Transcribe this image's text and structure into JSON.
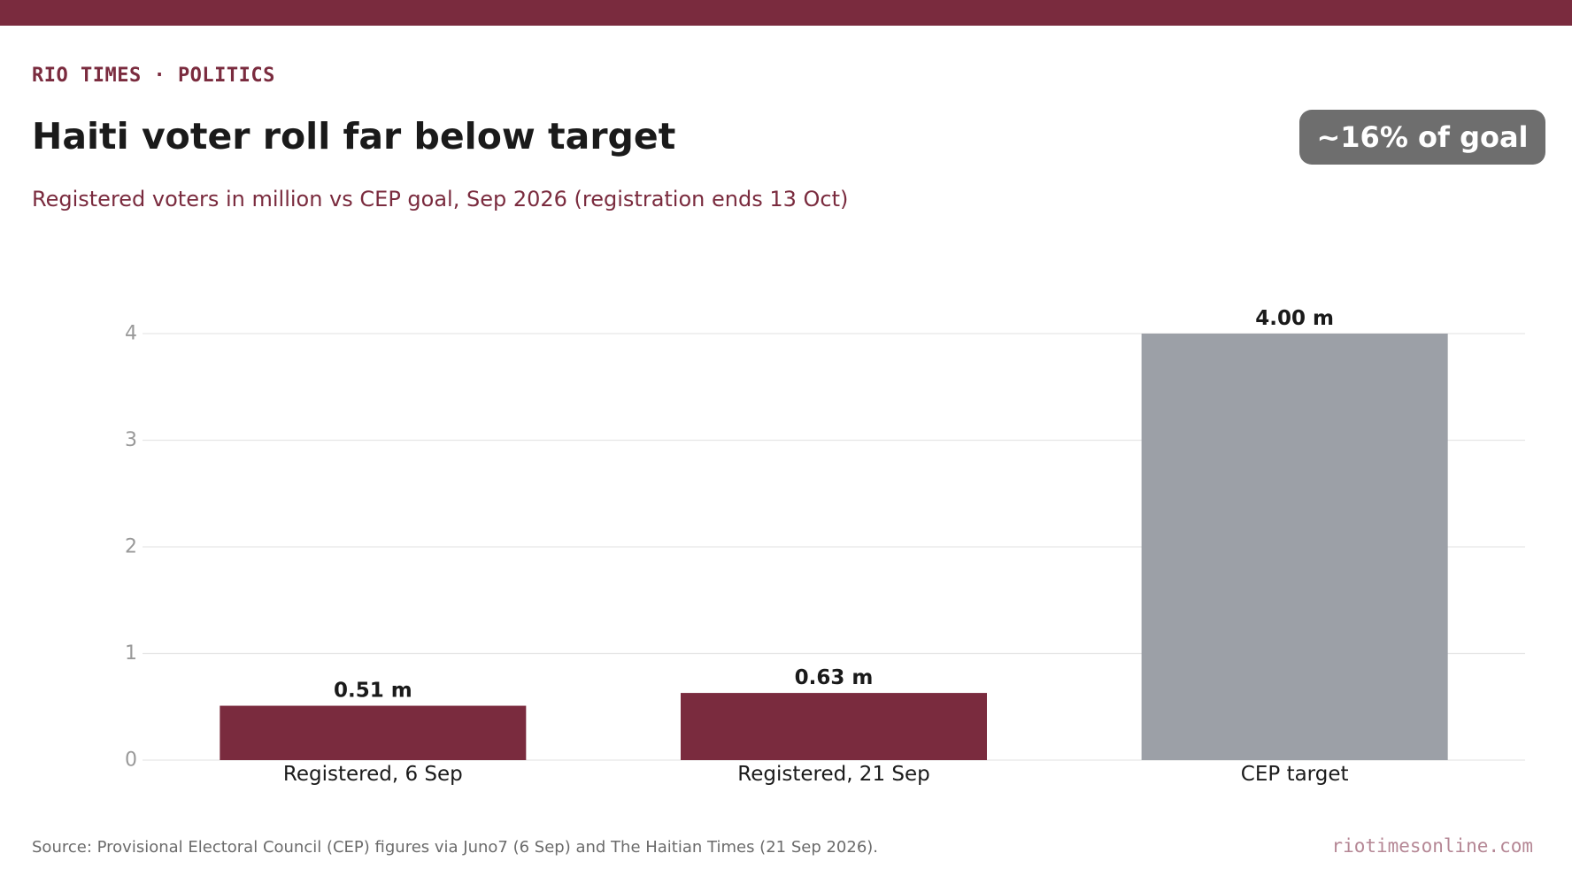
{
  "header": {
    "kicker": "RIO TIMES · POLITICS",
    "title": "Haiti voter roll far below target",
    "subtitle": "Registered voters in million vs CEP goal, Sep 2026 (registration ends 13 Oct)",
    "badge": "~16% of goal"
  },
  "colors": {
    "brand": "#7a2b3e",
    "target_bar": "#9ca0a7",
    "badge_bg": "#6e6e6e",
    "grid": "#e6e6e6",
    "tick_label": "#999999"
  },
  "chart_data": {
    "type": "bar",
    "categories": [
      "Registered, 6 Sep",
      "Registered, 21 Sep",
      "CEP target"
    ],
    "values": [
      0.51,
      0.63,
      4.0
    ],
    "data_labels": [
      "0.51 m",
      "0.63 m",
      "4.00 m"
    ],
    "bar_colors": [
      "#7a2b3e",
      "#7a2b3e",
      "#9ca0a7"
    ],
    "yticks": [
      0,
      1,
      2,
      3,
      4
    ],
    "ylim": [
      0,
      4
    ],
    "grid": true,
    "xlabel": "",
    "ylabel": ""
  },
  "footer": {
    "source": "Source: Provisional Electoral Council (CEP) figures via Juno7 (6 Sep) and The Haitian Times (21 Sep 2026).",
    "site": "riotimesonline.com"
  }
}
